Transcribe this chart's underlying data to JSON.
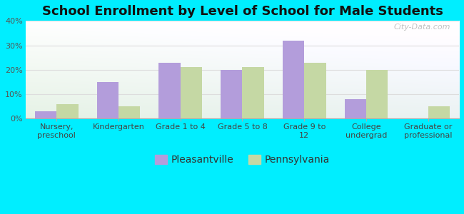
{
  "title": "School Enrollment by Level of School for Male Students",
  "categories": [
    "Nursery,\npreschool",
    "Kindergarten",
    "Grade 1 to 4",
    "Grade 5 to 8",
    "Grade 9 to\n12",
    "College\nundergrad",
    "Graduate or\nprofessional"
  ],
  "pleasantville": [
    3,
    15,
    23,
    20,
    32,
    8,
    0
  ],
  "pennsylvania": [
    6,
    5,
    21,
    21,
    23,
    20,
    5
  ],
  "pleasantville_color": "#b39ddb",
  "pennsylvania_color": "#c5d8a4",
  "background_color": "#00eeff",
  "ylim": [
    0,
    40
  ],
  "yticks": [
    0,
    10,
    20,
    30,
    40
  ],
  "legend_labels": [
    "Pleasantville",
    "Pennsylvania"
  ],
  "bar_width": 0.35,
  "title_fontsize": 13,
  "tick_fontsize": 8,
  "legend_fontsize": 10,
  "grid_color": "#dddddd",
  "watermark": "City-Data.com"
}
